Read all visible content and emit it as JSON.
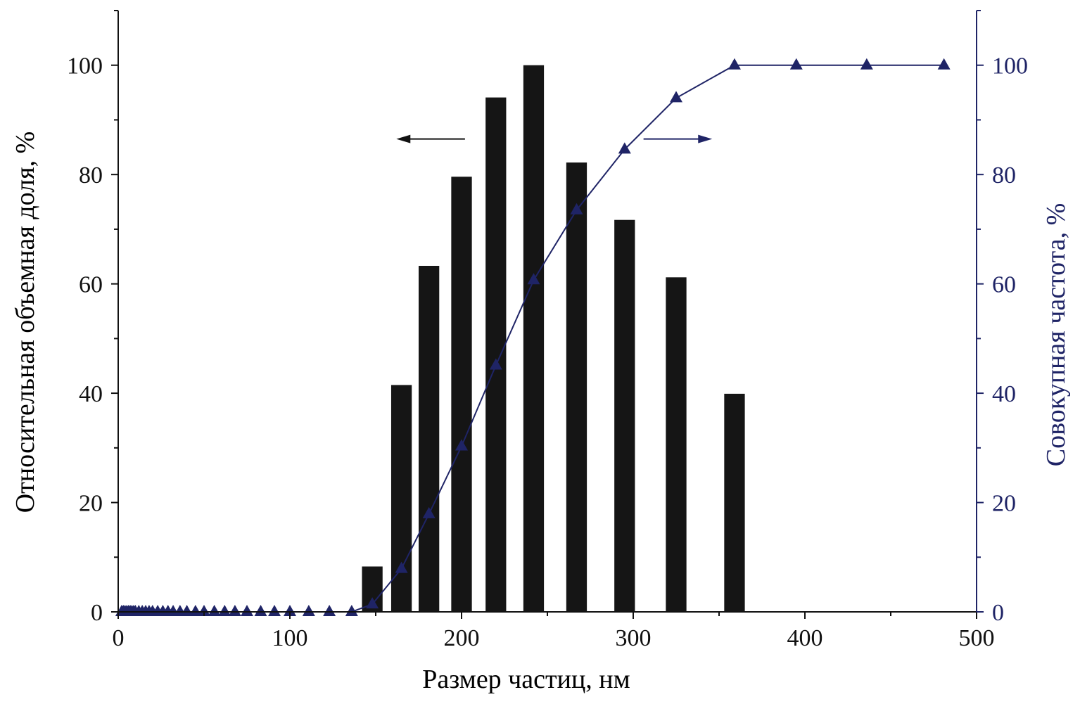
{
  "colors": {
    "bars": "#151515",
    "axis_left": "#111111",
    "series_line": "#1f2466",
    "axis_right": "#1f2466"
  },
  "chart_data": {
    "type": "bar",
    "title": "",
    "xlabel": "Размер частиц, нм",
    "ylabel_left": "Относительная объемная доля, %",
    "ylabel_right": "Совокупная частота, %",
    "xlim": [
      0,
      500
    ],
    "ylim_left": [
      0,
      110
    ],
    "ylim_right": [
      0,
      110
    ],
    "x_ticks": [
      0,
      100,
      200,
      300,
      400,
      500
    ],
    "y_ticks_left": [
      0,
      20,
      40,
      60,
      80,
      100
    ],
    "y_ticks_right": [
      0,
      20,
      40,
      60,
      80,
      100
    ],
    "grid": false,
    "bars": {
      "x": [
        148,
        165,
        181,
        200,
        220,
        242,
        267,
        295,
        325,
        359
      ],
      "values": [
        8.3,
        41.5,
        63.3,
        79.6,
        94.1,
        100,
        82.2,
        71.7,
        61.2,
        39.9
      ],
      "width": 12
    },
    "line": {
      "axis": "right",
      "marker": "triangle",
      "x": [
        2,
        3,
        4,
        5,
        6,
        7,
        8,
        9,
        10,
        12,
        14,
        16,
        18,
        20,
        23,
        26,
        29,
        32,
        36,
        40,
        45,
        50,
        56,
        62,
        68,
        75,
        83,
        91,
        100,
        111,
        123,
        136,
        148,
        165,
        181,
        200,
        220,
        242,
        267,
        295,
        325,
        359,
        395,
        436,
        481
      ],
      "y": [
        0,
        0,
        0,
        0,
        0,
        0,
        0,
        0,
        0,
        0,
        0,
        0,
        0,
        0,
        0,
        0,
        0,
        0,
        0,
        0,
        0,
        0,
        0,
        0,
        0,
        0,
        0,
        0,
        0,
        0,
        0,
        0,
        1.4,
        7.9,
        17.9,
        30.3,
        45.1,
        60.7,
        73.5,
        84.6,
        94,
        100,
        100,
        100,
        100
      ]
    },
    "annotations": [
      {
        "type": "arrow",
        "direction": "left",
        "points_to": "left-axis",
        "from": [
          202,
          86.5
        ],
        "to": [
          162,
          86.5
        ],
        "axis": "left"
      },
      {
        "type": "arrow",
        "direction": "right",
        "points_to": "right-axis",
        "from": [
          306,
          86.5
        ],
        "to": [
          346,
          86.5
        ],
        "axis": "left"
      }
    ]
  }
}
